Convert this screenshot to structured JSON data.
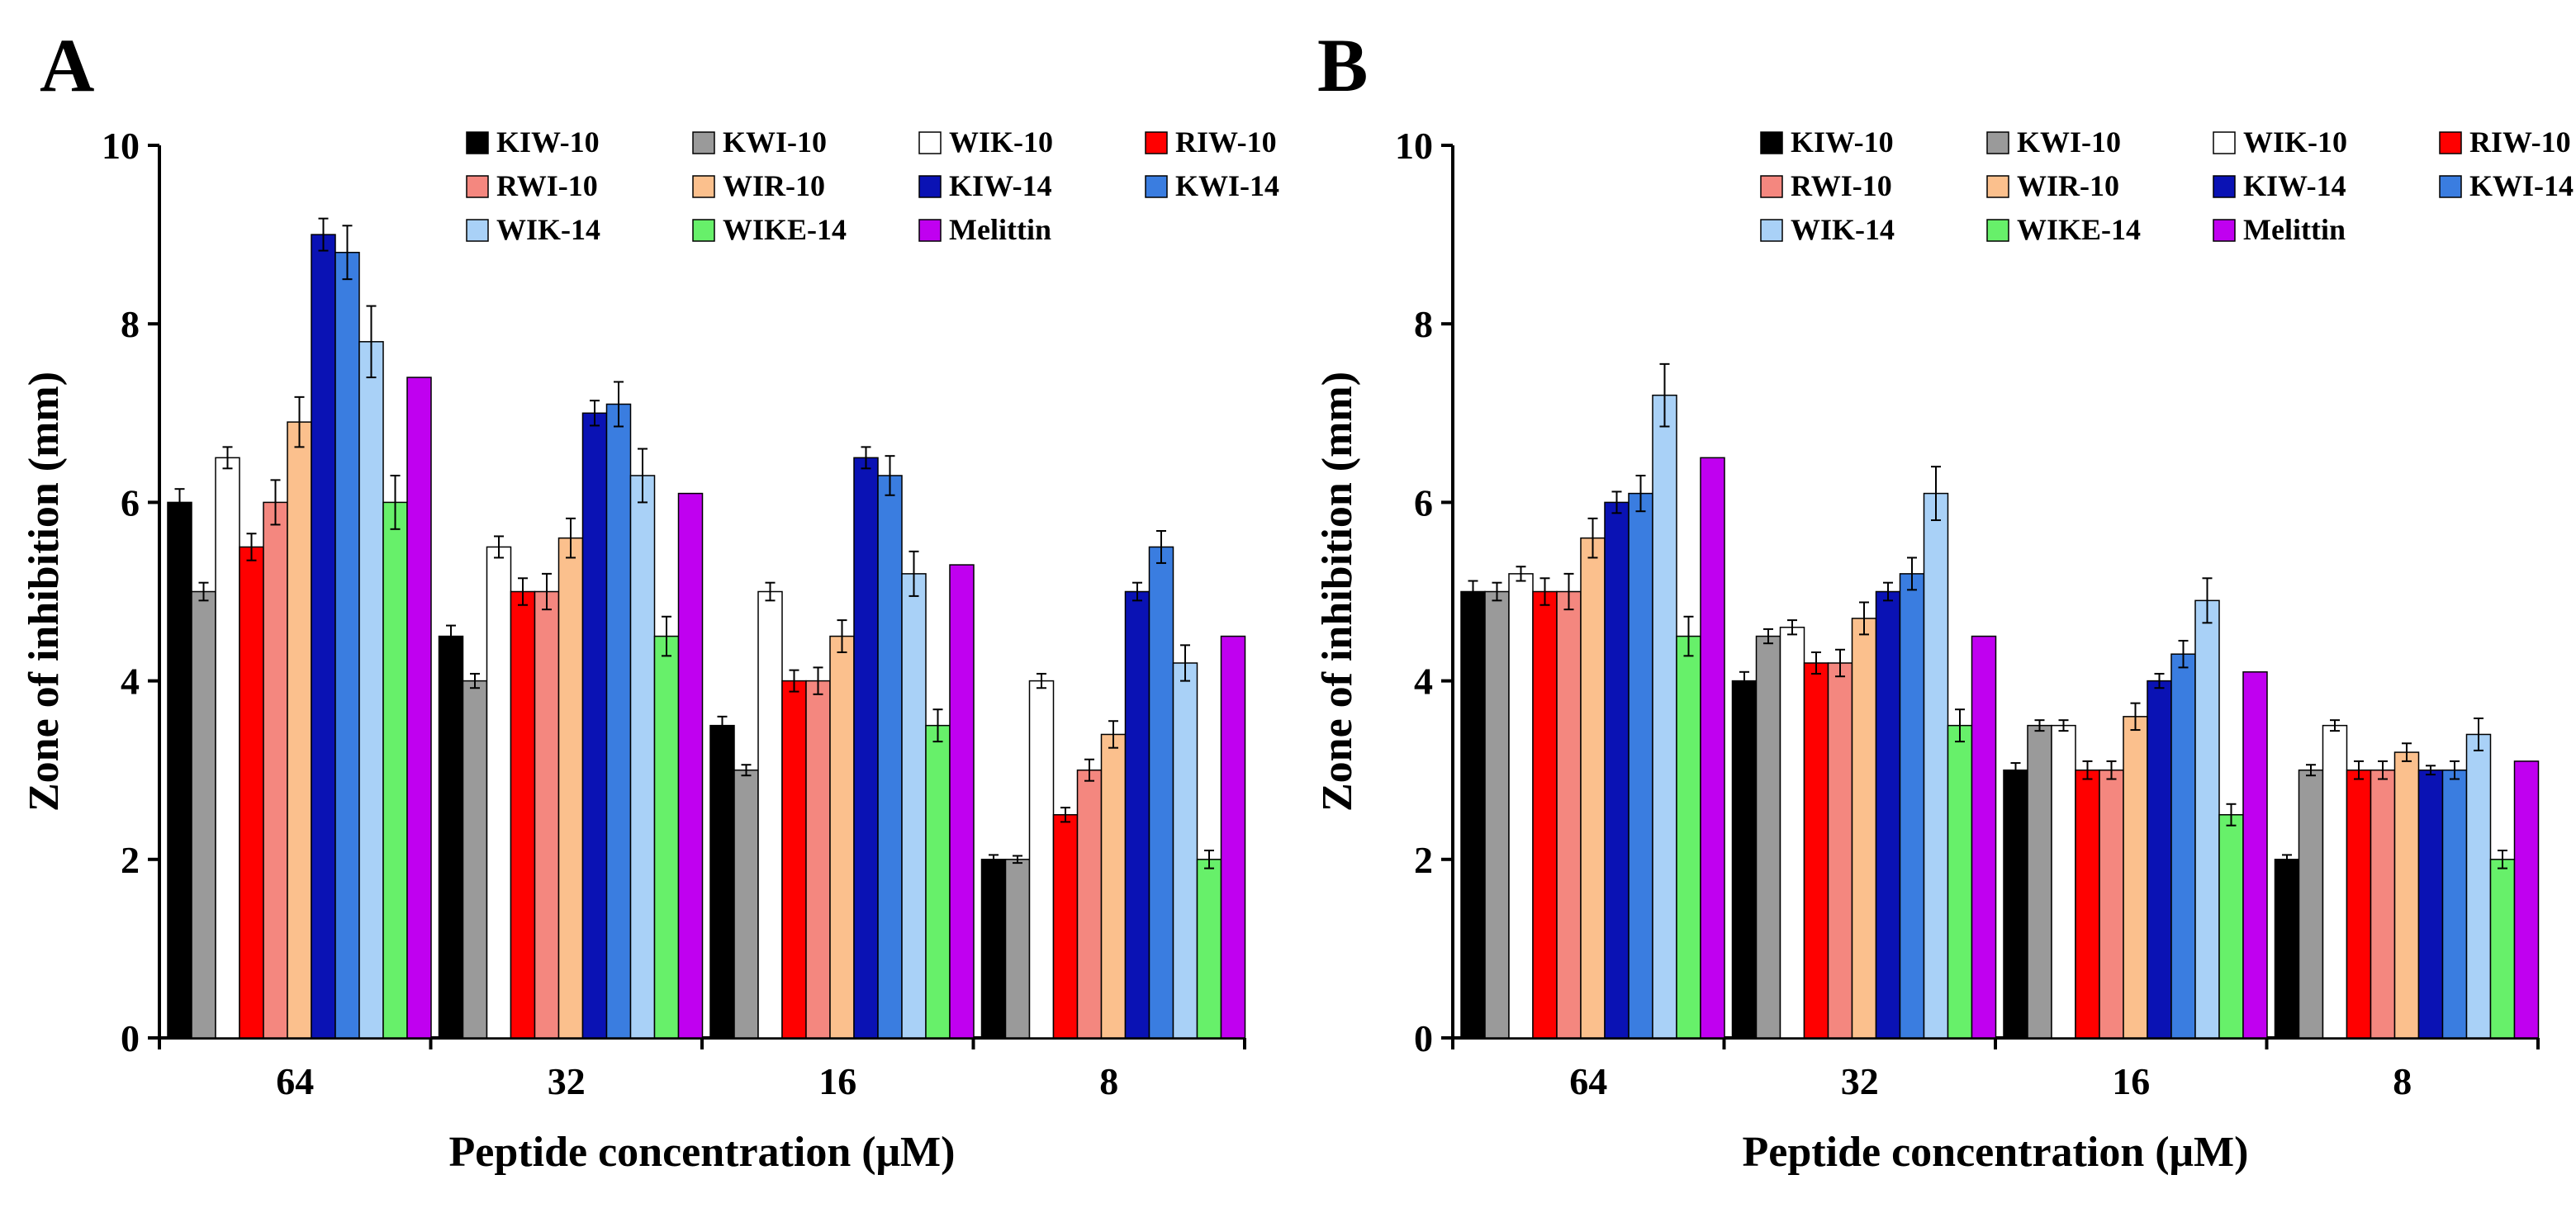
{
  "chart_data": [
    {
      "type": "bar",
      "panel": "A",
      "xlabel": "Peptide concentration (μM)",
      "ylabel": "Zone of inhibition (mm)",
      "ylim": [
        0,
        10
      ],
      "yticks": [
        0,
        2,
        4,
        6,
        8,
        10
      ],
      "categories": [
        "64",
        "32",
        "16",
        "8"
      ],
      "legend": "top-right",
      "series": [
        {
          "name": "KIW-10",
          "color": "#000000",
          "values": [
            6.0,
            4.5,
            3.5,
            2.0
          ],
          "errors": [
            0.15,
            0.12,
            0.1,
            0.05
          ]
        },
        {
          "name": "KWI-10",
          "color": "#9a9a9a",
          "values": [
            5.0,
            4.0,
            3.0,
            2.0
          ],
          "errors": [
            0.1,
            0.08,
            0.06,
            0.04
          ]
        },
        {
          "name": "WIK-10",
          "color": "#ffffff",
          "values": [
            6.5,
            5.5,
            5.0,
            4.0
          ],
          "errors": [
            0.12,
            0.12,
            0.1,
            0.08
          ]
        },
        {
          "name": "RIW-10",
          "color": "#ff0000",
          "values": [
            5.5,
            5.0,
            4.0,
            2.5
          ],
          "errors": [
            0.15,
            0.15,
            0.12,
            0.08
          ]
        },
        {
          "name": "RWI-10",
          "color": "#f4877f",
          "values": [
            6.0,
            5.0,
            4.0,
            3.0
          ],
          "errors": [
            0.25,
            0.2,
            0.15,
            0.12
          ]
        },
        {
          "name": "WIR-10",
          "color": "#fbc08d",
          "values": [
            6.9,
            5.6,
            4.5,
            3.4
          ],
          "errors": [
            0.28,
            0.22,
            0.18,
            0.15
          ]
        },
        {
          "name": "KIW-14",
          "color": "#0a12b4",
          "values": [
            9.0,
            7.0,
            6.5,
            5.0
          ],
          "errors": [
            0.18,
            0.14,
            0.12,
            0.1
          ]
        },
        {
          "name": "KWI-14",
          "color": "#3a7de0",
          "values": [
            8.8,
            7.1,
            6.3,
            5.5
          ],
          "errors": [
            0.3,
            0.25,
            0.22,
            0.18
          ]
        },
        {
          "name": "WIK-14",
          "color": "#a9d1f7",
          "values": [
            7.8,
            6.3,
            5.2,
            4.2
          ],
          "errors": [
            0.4,
            0.3,
            0.25,
            0.2
          ]
        },
        {
          "name": "WIKE-14",
          "color": "#67f06a",
          "values": [
            6.0,
            4.5,
            3.5,
            2.0
          ],
          "errors": [
            0.3,
            0.22,
            0.18,
            0.1
          ]
        },
        {
          "name": "Melittin",
          "color": "#c000f0",
          "values": [
            7.4,
            6.1,
            5.3,
            4.5
          ],
          "errors": [
            0,
            0,
            0,
            0
          ]
        }
      ]
    },
    {
      "type": "bar",
      "panel": "B",
      "xlabel": "Peptide concentration (μM)",
      "ylabel": "Zone of inhibition (mm)",
      "ylim": [
        0,
        10
      ],
      "yticks": [
        0,
        2,
        4,
        6,
        8,
        10
      ],
      "categories": [
        "64",
        "32",
        "16",
        "8"
      ],
      "legend": "top-right",
      "series": [
        {
          "name": "KIW-10",
          "color": "#000000",
          "values": [
            5.0,
            4.0,
            3.0,
            2.0
          ],
          "errors": [
            0.12,
            0.1,
            0.08,
            0.05
          ]
        },
        {
          "name": "KWI-10",
          "color": "#9a9a9a",
          "values": [
            5.0,
            4.5,
            3.5,
            3.0
          ],
          "errors": [
            0.1,
            0.08,
            0.06,
            0.06
          ]
        },
        {
          "name": "WIK-10",
          "color": "#ffffff",
          "values": [
            5.2,
            4.6,
            3.5,
            3.5
          ],
          "errors": [
            0.08,
            0.08,
            0.06,
            0.06
          ]
        },
        {
          "name": "RIW-10",
          "color": "#ff0000",
          "values": [
            5.0,
            4.2,
            3.0,
            3.0
          ],
          "errors": [
            0.15,
            0.12,
            0.1,
            0.1
          ]
        },
        {
          "name": "RWI-10",
          "color": "#f4877f",
          "values": [
            5.0,
            4.2,
            3.0,
            3.0
          ],
          "errors": [
            0.2,
            0.15,
            0.1,
            0.1
          ]
        },
        {
          "name": "WIR-10",
          "color": "#fbc08d",
          "values": [
            5.6,
            4.7,
            3.6,
            3.2
          ],
          "errors": [
            0.22,
            0.18,
            0.15,
            0.1
          ]
        },
        {
          "name": "KIW-14",
          "color": "#0a12b4",
          "values": [
            6.0,
            5.0,
            4.0,
            3.0
          ],
          "errors": [
            0.12,
            0.1,
            0.08,
            0.05
          ]
        },
        {
          "name": "KWI-14",
          "color": "#3a7de0",
          "values": [
            6.1,
            5.2,
            4.3,
            3.0
          ],
          "errors": [
            0.2,
            0.18,
            0.15,
            0.1
          ]
        },
        {
          "name": "WIK-14",
          "color": "#a9d1f7",
          "values": [
            7.2,
            6.1,
            4.9,
            3.4
          ],
          "errors": [
            0.35,
            0.3,
            0.25,
            0.18
          ]
        },
        {
          "name": "WIKE-14",
          "color": "#67f06a",
          "values": [
            4.5,
            3.5,
            2.5,
            2.0
          ],
          "errors": [
            0.22,
            0.18,
            0.12,
            0.1
          ]
        },
        {
          "name": "Melittin",
          "color": "#c000f0",
          "values": [
            6.5,
            4.5,
            4.1,
            3.1
          ],
          "errors": [
            0,
            0,
            0,
            0
          ]
        }
      ]
    }
  ]
}
